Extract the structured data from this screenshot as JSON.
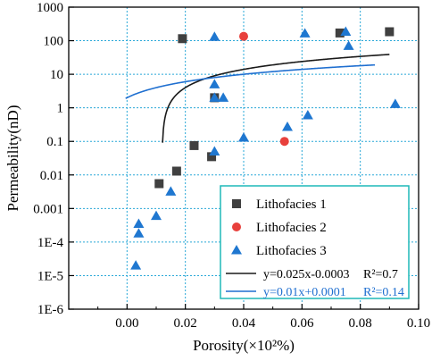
{
  "chart_data": {
    "type": "scatter",
    "xlabel": "Porosity(×10²%)",
    "ylabel": "Permeability(nD)",
    "xlim": [
      -0.02,
      0.1
    ],
    "ylim_log10": [
      -6,
      3
    ],
    "x_ticks": [
      "0.00",
      "0.02",
      "0.04",
      "0.06",
      "0.08",
      "0.10"
    ],
    "x_tick_values": [
      0,
      0.02,
      0.04,
      0.06,
      0.08,
      0.1
    ],
    "y_ticks": [
      "1E-6",
      "1E-5",
      "1E-4",
      "0.001",
      "0.01",
      "0.1",
      "1",
      "10",
      "100",
      "1000"
    ],
    "y_tick_values": [
      1e-06,
      1e-05,
      0.0001,
      0.001,
      0.01,
      0.1,
      1,
      10,
      100,
      1000
    ],
    "y_scale": "log",
    "grid": true,
    "legend_position": "bottom-right",
    "series": [
      {
        "name": "Lithofacies 1",
        "marker": "square",
        "color": "#404040",
        "points": [
          {
            "x": 0.011,
            "y": 0.0055
          },
          {
            "x": 0.017,
            "y": 0.013
          },
          {
            "x": 0.019,
            "y": 115
          },
          {
            "x": 0.023,
            "y": 0.075
          },
          {
            "x": 0.029,
            "y": 0.035
          },
          {
            "x": 0.03,
            "y": 2.0
          },
          {
            "x": 0.073,
            "y": 170
          },
          {
            "x": 0.09,
            "y": 185
          }
        ]
      },
      {
        "name": "Lithofacies 2",
        "marker": "circle",
        "color": "#e8403c",
        "points": [
          {
            "x": 0.04,
            "y": 135
          },
          {
            "x": 0.054,
            "y": 0.1
          }
        ]
      },
      {
        "name": "Lithofacies 3",
        "marker": "triangle",
        "color": "#1f77d0",
        "points": [
          {
            "x": 0.003,
            "y": 2e-05
          },
          {
            "x": 0.004,
            "y": 0.00035
          },
          {
            "x": 0.004,
            "y": 0.00018
          },
          {
            "x": 0.01,
            "y": 0.0006
          },
          {
            "x": 0.015,
            "y": 0.0032
          },
          {
            "x": 0.03,
            "y": 130
          },
          {
            "x": 0.03,
            "y": 5
          },
          {
            "x": 0.03,
            "y": 2.0
          },
          {
            "x": 0.03,
            "y": 0.05
          },
          {
            "x": 0.033,
            "y": 2.0
          },
          {
            "x": 0.04,
            "y": 0.13
          },
          {
            "x": 0.055,
            "y": 0.27
          },
          {
            "x": 0.061,
            "y": 165
          },
          {
            "x": 0.062,
            "y": 0.6
          },
          {
            "x": 0.075,
            "y": 185
          },
          {
            "x": 0.076,
            "y": 70
          },
          {
            "x": 0.092,
            "y": 1.3
          }
        ]
      }
    ],
    "fits": [
      {
        "label": "y=0.025x-0.0003",
        "r2": "R²=0.7",
        "color": "#1a1a1a",
        "x_range": [
          0.0095,
          0.09
        ]
      },
      {
        "label": "y=0.01x+0.0001",
        "r2": "R²=0.14",
        "color": "#1f6fd0",
        "x_range": [
          -0.0005,
          0.085
        ]
      }
    ]
  }
}
